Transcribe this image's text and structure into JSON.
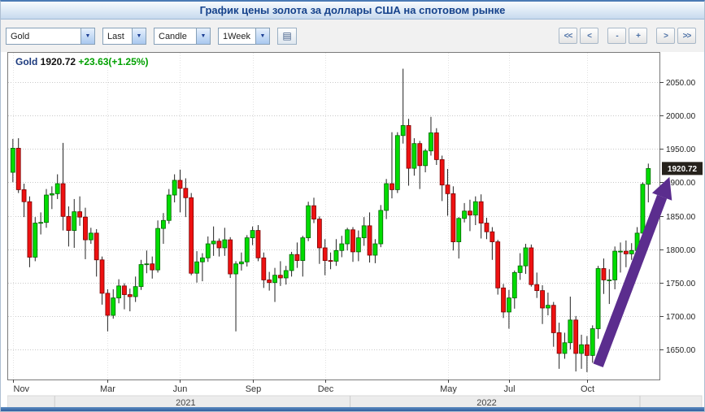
{
  "window": {
    "title": "График цены золота за доллары США на спотовом рынке"
  },
  "icons": {
    "dropdown_arrow": "▼",
    "settings_icon": "▤"
  },
  "toolbar": {
    "symbol": "Gold",
    "price_type": "Last",
    "chart_type": "Candle",
    "timeframe": "1Week",
    "nav": {
      "fast_left": "<<",
      "left": "<",
      "zoom_out": "-",
      "zoom_in": "+",
      "right": ">",
      "fast_right": ">>"
    }
  },
  "legend": {
    "symbol": "Gold",
    "last": "1920.72",
    "change": "+23.63(+1.25%)"
  },
  "chart_data": {
    "type": "candlestick",
    "title": "Gold spot price in USD, weekly candles",
    "timeframe": "1Week",
    "ylim": [
      1605,
      2095
    ],
    "y_ticks": [
      2050,
      2000,
      1950,
      1900,
      1850,
      1800,
      1750,
      1700,
      1650
    ],
    "x_ticks": [
      {
        "i": 0,
        "label": "Nov"
      },
      {
        "i": 17,
        "label": "Mar"
      },
      {
        "i": 30,
        "label": "Jun"
      },
      {
        "i": 43,
        "label": "Sep"
      },
      {
        "i": 56,
        "label": "Dec"
      },
      {
        "i": 78,
        "label": "May"
      },
      {
        "i": 89,
        "label": "Jul"
      },
      {
        "i": 103,
        "label": "Oct"
      }
    ],
    "years": [
      {
        "label": "2021",
        "center_i": 31
      },
      {
        "label": "2022",
        "center_i": 85
      }
    ],
    "year_dividers": [
      8,
      61,
      113
    ],
    "last_price": 1920.72,
    "colors": {
      "up": "#00dc00",
      "up_border": "#006600",
      "down": "#ee1111",
      "down_border": "#7a0000",
      "wick": "#222222",
      "arrow": "#5b2d8e",
      "legend_symbol": "#1c3a7e",
      "legend_change": "#00a000",
      "last_price_box": "#26221c"
    },
    "arrow": {
      "from": {
        "i": 105,
        "price": 1626
      },
      "to": {
        "i": 117.8,
        "price": 1908
      }
    },
    "candles": [
      [
        1915,
        1965,
        1900,
        1951
      ],
      [
        1951,
        1966,
        1884,
        1889
      ],
      [
        1889,
        1898,
        1848,
        1871
      ],
      [
        1871,
        1879,
        1773,
        1788
      ],
      [
        1788,
        1848,
        1782,
        1839
      ],
      [
        1839,
        1855,
        1822,
        1840
      ],
      [
        1840,
        1890,
        1832,
        1881
      ],
      [
        1881,
        1894,
        1860,
        1883
      ],
      [
        1883,
        1912,
        1875,
        1898
      ],
      [
        1898,
        1959,
        1828,
        1849
      ],
      [
        1849,
        1864,
        1804,
        1828
      ],
      [
        1828,
        1875,
        1802,
        1856
      ],
      [
        1856,
        1879,
        1835,
        1848
      ],
      [
        1848,
        1862,
        1785,
        1814
      ],
      [
        1814,
        1832,
        1808,
        1824
      ],
      [
        1824,
        1830,
        1759,
        1784
      ],
      [
        1784,
        1789,
        1717,
        1734
      ],
      [
        1734,
        1740,
        1677,
        1701
      ],
      [
        1701,
        1740,
        1696,
        1727
      ],
      [
        1727,
        1755,
        1719,
        1745
      ],
      [
        1745,
        1749,
        1710,
        1732
      ],
      [
        1732,
        1741,
        1707,
        1729
      ],
      [
        1729,
        1759,
        1721,
        1744
      ],
      [
        1744,
        1784,
        1739,
        1777
      ],
      [
        1777,
        1798,
        1764,
        1778
      ],
      [
        1778,
        1789,
        1756,
        1769
      ],
      [
        1769,
        1843,
        1765,
        1831
      ],
      [
        1831,
        1854,
        1808,
        1843
      ],
      [
        1843,
        1890,
        1838,
        1881
      ],
      [
        1881,
        1912,
        1870,
        1903
      ],
      [
        1903,
        1919,
        1855,
        1891
      ],
      [
        1891,
        1906,
        1848,
        1877
      ],
      [
        1877,
        1884,
        1761,
        1764
      ],
      [
        1764,
        1797,
        1750,
        1781
      ],
      [
        1781,
        1794,
        1752,
        1787
      ],
      [
        1787,
        1819,
        1781,
        1808
      ],
      [
        1808,
        1834,
        1790,
        1812
      ],
      [
        1812,
        1816,
        1789,
        1802
      ],
      [
        1802,
        1832,
        1790,
        1814
      ],
      [
        1814,
        1818,
        1757,
        1763
      ],
      [
        1763,
        1782,
        1677,
        1778
      ],
      [
        1778,
        1795,
        1768,
        1781
      ],
      [
        1781,
        1821,
        1774,
        1817
      ],
      [
        1817,
        1834,
        1806,
        1828
      ],
      [
        1828,
        1836,
        1782,
        1787
      ],
      [
        1787,
        1795,
        1742,
        1754
      ],
      [
        1754,
        1766,
        1738,
        1750
      ],
      [
        1750,
        1772,
        1721,
        1761
      ],
      [
        1761,
        1782,
        1745,
        1757
      ],
      [
        1757,
        1775,
        1747,
        1768
      ],
      [
        1768,
        1796,
        1759,
        1792
      ],
      [
        1792,
        1810,
        1772,
        1783
      ],
      [
        1783,
        1820,
        1759,
        1817
      ],
      [
        1817,
        1871,
        1812,
        1865
      ],
      [
        1865,
        1877,
        1839,
        1845
      ],
      [
        1845,
        1849,
        1778,
        1802
      ],
      [
        1802,
        1815,
        1761,
        1783
      ],
      [
        1783,
        1795,
        1770,
        1782
      ],
      [
        1782,
        1815,
        1775,
        1798
      ],
      [
        1798,
        1820,
        1788,
        1808
      ],
      [
        1808,
        1832,
        1798,
        1829
      ],
      [
        1829,
        1833,
        1781,
        1796
      ],
      [
        1796,
        1828,
        1782,
        1817
      ],
      [
        1817,
        1848,
        1805,
        1835
      ],
      [
        1835,
        1855,
        1780,
        1791
      ],
      [
        1791,
        1815,
        1779,
        1808
      ],
      [
        1808,
        1866,
        1803,
        1858
      ],
      [
        1858,
        1905,
        1845,
        1898
      ],
      [
        1898,
        1975,
        1876,
        1889
      ],
      [
        1889,
        1975,
        1884,
        1970
      ],
      [
        1970,
        2070,
        1958,
        1985
      ],
      [
        1985,
        1995,
        1895,
        1921
      ],
      [
        1921,
        1966,
        1910,
        1958
      ],
      [
        1958,
        1962,
        1890,
        1925
      ],
      [
        1925,
        1950,
        1915,
        1947
      ],
      [
        1947,
        1998,
        1940,
        1974
      ],
      [
        1974,
        1981,
        1926,
        1934
      ],
      [
        1934,
        1940,
        1872,
        1896
      ],
      [
        1896,
        1920,
        1850,
        1883
      ],
      [
        1883,
        1894,
        1798,
        1811
      ],
      [
        1811,
        1848,
        1786,
        1846
      ],
      [
        1846,
        1869,
        1840,
        1857
      ],
      [
        1857,
        1874,
        1827,
        1851
      ],
      [
        1851,
        1879,
        1836,
        1871
      ],
      [
        1871,
        1882,
        1816,
        1839
      ],
      [
        1839,
        1847,
        1815,
        1826
      ],
      [
        1826,
        1833,
        1784,
        1811
      ],
      [
        1811,
        1814,
        1732,
        1742
      ],
      [
        1742,
        1748,
        1697,
        1706
      ],
      [
        1706,
        1739,
        1681,
        1727
      ],
      [
        1727,
        1768,
        1711,
        1765
      ],
      [
        1765,
        1794,
        1754,
        1775
      ],
      [
        1775,
        1808,
        1763,
        1802
      ],
      [
        1802,
        1807,
        1744,
        1747
      ],
      [
        1747,
        1765,
        1727,
        1738
      ],
      [
        1738,
        1746,
        1688,
        1712
      ],
      [
        1712,
        1735,
        1701,
        1716
      ],
      [
        1716,
        1721,
        1654,
        1675
      ],
      [
        1675,
        1690,
        1621,
        1644
      ],
      [
        1644,
        1675,
        1636,
        1660
      ],
      [
        1660,
        1729,
        1650,
        1694
      ],
      [
        1694,
        1700,
        1617,
        1644
      ],
      [
        1644,
        1672,
        1621,
        1657
      ],
      [
        1657,
        1670,
        1616,
        1641
      ],
      [
        1641,
        1686,
        1630,
        1681
      ],
      [
        1681,
        1775,
        1666,
        1771
      ],
      [
        1771,
        1786,
        1733,
        1754
      ],
      [
        1754,
        1770,
        1718,
        1754
      ],
      [
        1754,
        1804,
        1740,
        1797
      ],
      [
        1797,
        1810,
        1765,
        1797
      ],
      [
        1797,
        1813,
        1773,
        1793
      ],
      [
        1793,
        1809,
        1784,
        1798
      ],
      [
        1798,
        1833,
        1792,
        1824
      ],
      [
        1824,
        1900,
        1823,
        1897.09
      ],
      [
        1897.09,
        1928,
        1870,
        1920.72
      ]
    ]
  }
}
